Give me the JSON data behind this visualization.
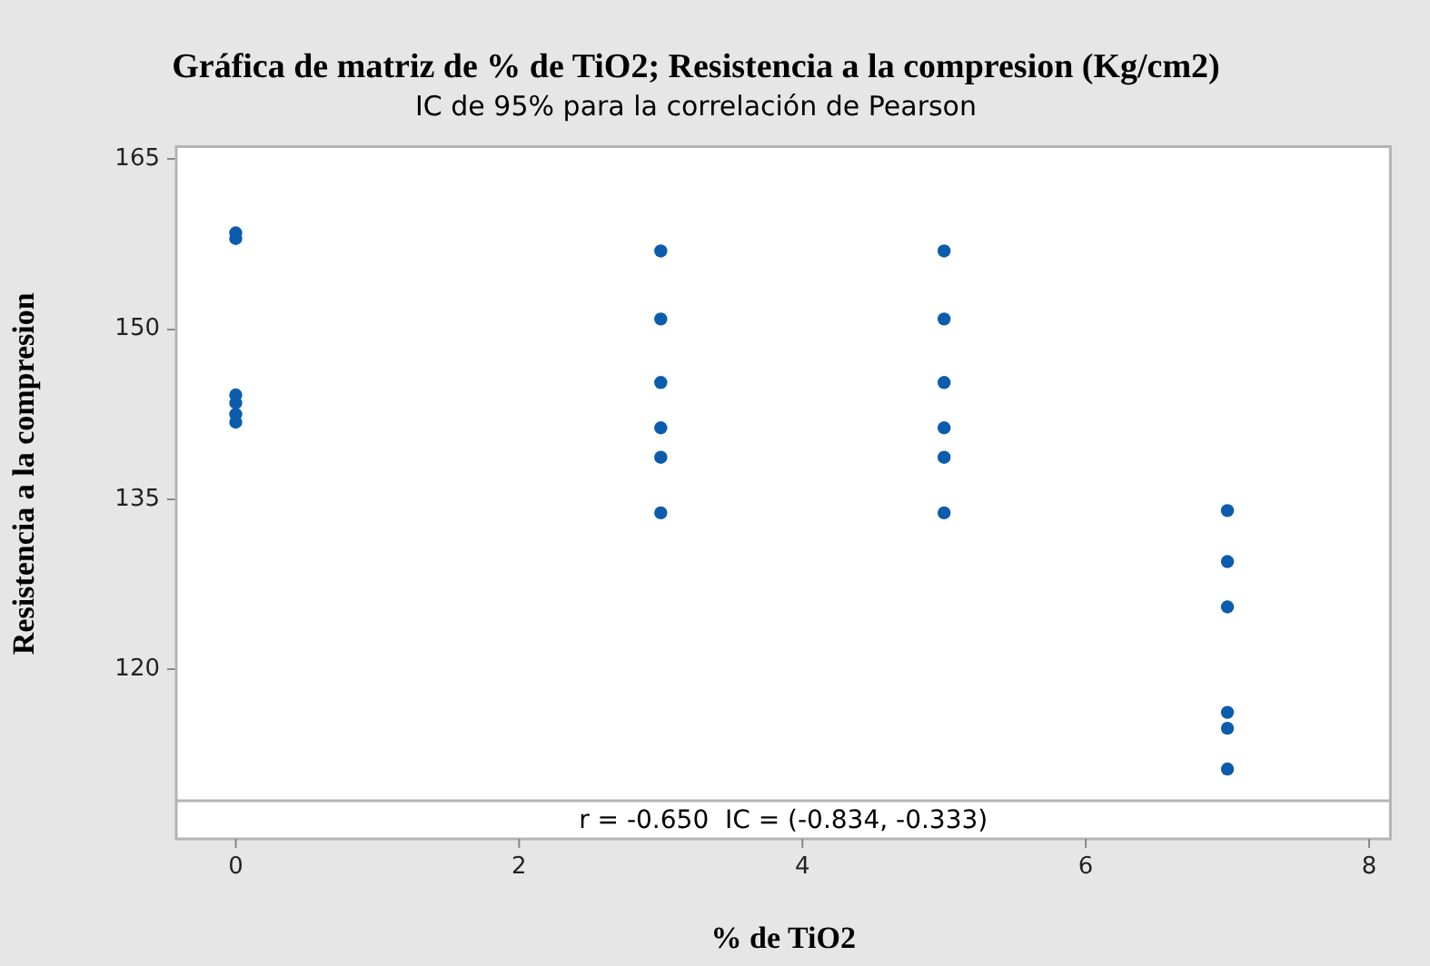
{
  "chart_data": {
    "type": "scatter",
    "title": "Gráfica de matriz de % de TiO2; Resistencia a la compresion (Kg/cm2)",
    "subtitle": "IC de 95% para la correlación de Pearson",
    "xlabel": "% de TiO2",
    "ylabel": "Resistencia a la compresion",
    "x": [
      0,
      0,
      0,
      0,
      0,
      0,
      3,
      3,
      3,
      3,
      3,
      3,
      5,
      5,
      5,
      5,
      5,
      5,
      7,
      7,
      7,
      7,
      7,
      7
    ],
    "values": [
      158.5,
      158.0,
      144.2,
      143.5,
      142.5,
      141.8,
      156.9,
      150.9,
      145.3,
      141.3,
      138.7,
      133.8,
      156.9,
      150.9,
      145.3,
      141.3,
      138.7,
      133.8,
      134.0,
      129.5,
      125.5,
      116.2,
      114.8,
      111.2
    ],
    "color": "#0b5cad",
    "marker": "circle",
    "xlim": [
      -0.42,
      8.15
    ],
    "xticks": [
      0,
      2,
      4,
      6,
      8
    ],
    "ylim": [
      108.4,
      166.1
    ],
    "yticks": [
      120,
      135,
      150,
      165
    ],
    "annotations": [
      "r = -0.650  IC = (-0.834, -0.333)"
    ]
  }
}
